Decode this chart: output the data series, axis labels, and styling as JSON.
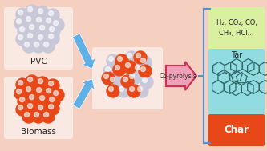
{
  "background_color": "#f5d0c0",
  "pvc_label": "PVC",
  "biomass_label": "Biomass",
  "copyr_label": "Co-pyrolysis",
  "gas_label": "H₂, CO₂, CO,\nCH₄, HCl...",
  "tar_label": "Tar",
  "char_label": "Char",
  "gas_box_color": "#d8f0a0",
  "tar_box_color": "#90dce0",
  "char_box_color": "#e84818",
  "arrow_blue": "#60b0e8",
  "brace_color": "#5090d0",
  "text_color": "#222222",
  "char_text_color": "#ffffff",
  "pvc_sphere_color": "#c8c8d8",
  "biomass_sphere_color": "#e84818",
  "sphere_highlight": "#ffffff",
  "pac_color": "#306868"
}
